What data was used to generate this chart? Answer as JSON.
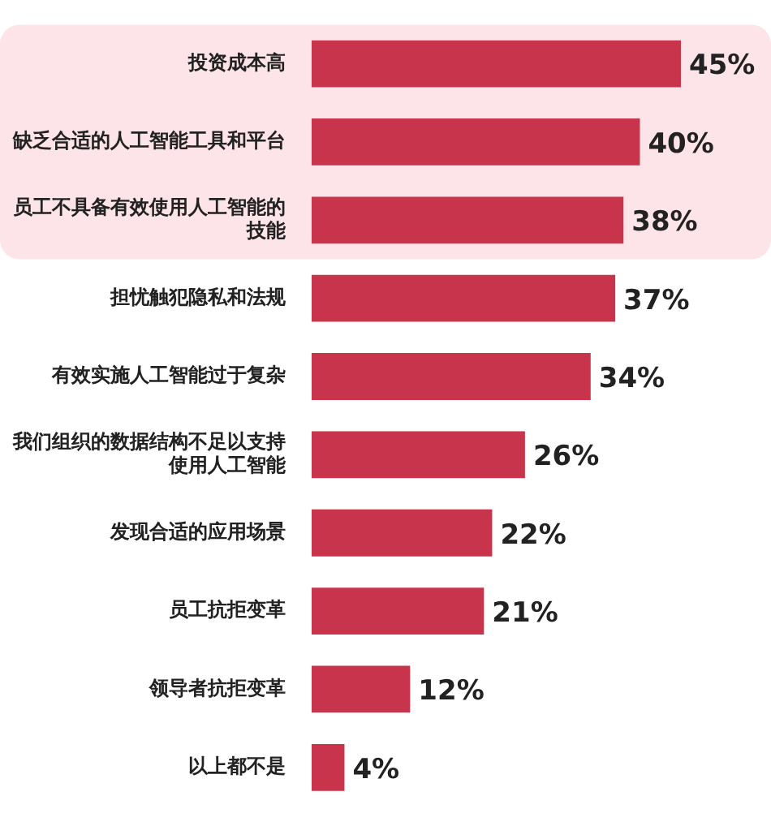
{
  "chart_data": {
    "type": "bar",
    "orientation": "horizontal",
    "categories": [
      "投资成本高",
      "缺乏合适的人工智能工具和平台",
      "员工不具备有效使用人工智能的技能",
      "担忧触犯隐私和法规",
      "有效实施人工智能过于复杂",
      "我们组织的数据结构不足以支持使用人工智能",
      "发现合适的应用场景",
      "员工抗拒变革",
      "领导者抗拒变革",
      "以上都不是"
    ],
    "values": [
      45,
      40,
      38,
      37,
      34,
      26,
      22,
      21,
      12,
      4
    ],
    "value_labels": [
      "45%",
      "40%",
      "38%",
      "37%",
      "34%",
      "26%",
      "22%",
      "21%",
      "12%",
      "4%"
    ],
    "color": "#c8344c",
    "bands": [
      {
        "axis": "y",
        "from": "投资成本高",
        "to": "员工不具备有效使用人工智能的技能",
        "color": "#fde4e8"
      }
    ],
    "legend": false
  }
}
